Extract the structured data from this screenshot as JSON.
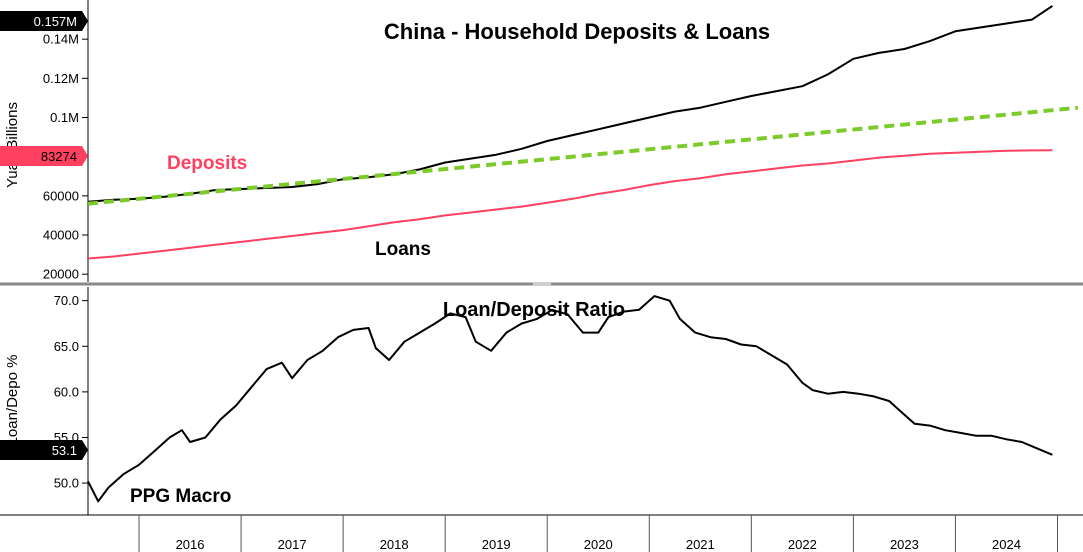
{
  "colors": {
    "deposits": "#ff4060",
    "loans": "#000000",
    "trend": "#7ccb2a",
    "ratio": "#000000",
    "divider": "#9a9a9a"
  },
  "chart_data": [
    {
      "type": "line",
      "title": "China - Household Deposits & Loans",
      "ylabel": "Yuan Billions",
      "ylim": [
        16000,
        160000
      ],
      "yticks": [
        {
          "value": 20000,
          "label": "20000"
        },
        {
          "value": 40000,
          "label": "40000"
        },
        {
          "value": 60000,
          "label": "60000"
        },
        {
          "value": 100000,
          "label": "0.1M"
        },
        {
          "value": 120000,
          "label": "0.12M"
        },
        {
          "value": 140000,
          "label": "0.14M"
        }
      ],
      "annotations": {
        "deposits": "Deposits",
        "loans": "Loans"
      },
      "last_value_tags": [
        {
          "series": "Loans",
          "label": "0.157M",
          "value": 157000
        },
        {
          "series": "Deposits",
          "label": "83274",
          "value": 83274
        }
      ],
      "series": [
        {
          "name": "Loans",
          "points": [
            [
              2015.5,
              57000
            ],
            [
              2015.75,
              58000
            ],
            [
              2016.0,
              58500
            ],
            [
              2016.25,
              59500
            ],
            [
              2016.5,
              61000
            ],
            [
              2016.75,
              63000
            ],
            [
              2017.0,
              63500
            ],
            [
              2017.25,
              64000
            ],
            [
              2017.5,
              64500
            ],
            [
              2017.75,
              66000
            ],
            [
              2018.0,
              68500
            ],
            [
              2018.25,
              69500
            ],
            [
              2018.5,
              71000
            ],
            [
              2018.75,
              73500
            ],
            [
              2019.0,
              77000
            ],
            [
              2019.25,
              79000
            ],
            [
              2019.5,
              81000
            ],
            [
              2019.75,
              84000
            ],
            [
              2020.0,
              88000
            ],
            [
              2020.25,
              91000
            ],
            [
              2020.5,
              94000
            ],
            [
              2020.75,
              97000
            ],
            [
              2021.0,
              100000
            ],
            [
              2021.25,
              103000
            ],
            [
              2021.5,
              105000
            ],
            [
              2021.75,
              108000
            ],
            [
              2022.0,
              111000
            ],
            [
              2022.25,
              113500
            ],
            [
              2022.5,
              116000
            ],
            [
              2022.75,
              122000
            ],
            [
              2023.0,
              130000
            ],
            [
              2023.25,
              133000
            ],
            [
              2023.5,
              135000
            ],
            [
              2023.75,
              139000
            ],
            [
              2024.0,
              144000
            ],
            [
              2024.25,
              146000
            ],
            [
              2024.5,
              148000
            ],
            [
              2024.75,
              150000
            ],
            [
              2024.95,
              157000
            ]
          ]
        },
        {
          "name": "Deposits",
          "points": [
            [
              2015.5,
              28000
            ],
            [
              2015.75,
              29000
            ],
            [
              2016.0,
              30500
            ],
            [
              2016.25,
              32000
            ],
            [
              2016.5,
              33500
            ],
            [
              2016.75,
              35000
            ],
            [
              2017.0,
              36500
            ],
            [
              2017.25,
              38000
            ],
            [
              2017.5,
              39500
            ],
            [
              2017.75,
              41000
            ],
            [
              2018.0,
              42500
            ],
            [
              2018.25,
              44500
            ],
            [
              2018.5,
              46500
            ],
            [
              2018.75,
              48000
            ],
            [
              2019.0,
              50000
            ],
            [
              2019.25,
              51500
            ],
            [
              2019.5,
              53000
            ],
            [
              2019.75,
              54500
            ],
            [
              2020.0,
              56500
            ],
            [
              2020.25,
              58500
            ],
            [
              2020.5,
              61000
            ],
            [
              2020.75,
              63000
            ],
            [
              2021.0,
              65500
            ],
            [
              2021.25,
              67500
            ],
            [
              2021.5,
              69000
            ],
            [
              2021.75,
              71000
            ],
            [
              2022.0,
              72500
            ],
            [
              2022.25,
              74000
            ],
            [
              2022.5,
              75500
            ],
            [
              2022.75,
              76500
            ],
            [
              2023.0,
              78000
            ],
            [
              2023.25,
              79500
            ],
            [
              2023.5,
              80500
            ],
            [
              2023.75,
              81500
            ],
            [
              2024.0,
              82000
            ],
            [
              2024.25,
              82500
            ],
            [
              2024.5,
              83000
            ],
            [
              2024.75,
              83200
            ],
            [
              2024.95,
              83274
            ]
          ]
        },
        {
          "name": "Trend",
          "dashed": true,
          "points": [
            [
              2015.5,
              56000
            ],
            [
              2025.2,
              105000
            ]
          ]
        }
      ]
    },
    {
      "type": "line",
      "title": "Loan/Deposit Ratio",
      "ylabel": "Loan/Depo %",
      "ylim": [
        46.5,
        71.5
      ],
      "yticks": [
        {
          "value": 50,
          "label": "50.0"
        },
        {
          "value": 55,
          "label": "55.0"
        },
        {
          "value": 60,
          "label": "60.0"
        },
        {
          "value": 65,
          "label": "65.0"
        },
        {
          "value": 70,
          "label": "70.0"
        }
      ],
      "annotations": {
        "source": "PPG Macro"
      },
      "last_value_tags": [
        {
          "series": "Loan/Deposit Ratio",
          "label": "53.1",
          "value": 53.1
        }
      ],
      "series": [
        {
          "name": "Loan/Deposit Ratio",
          "points": [
            [
              2015.5,
              50.2
            ],
            [
              2015.6,
              48.0
            ],
            [
              2015.7,
              49.5
            ],
            [
              2015.85,
              51.0
            ],
            [
              2016.0,
              52.0
            ],
            [
              2016.15,
              53.5
            ],
            [
              2016.3,
              55.0
            ],
            [
              2016.42,
              55.8
            ],
            [
              2016.5,
              54.5
            ],
            [
              2016.65,
              55.0
            ],
            [
              2016.8,
              57.0
            ],
            [
              2016.95,
              58.5
            ],
            [
              2017.1,
              60.5
            ],
            [
              2017.25,
              62.5
            ],
            [
              2017.4,
              63.2
            ],
            [
              2017.5,
              61.5
            ],
            [
              2017.65,
              63.5
            ],
            [
              2017.8,
              64.5
            ],
            [
              2017.95,
              66.0
            ],
            [
              2018.1,
              66.8
            ],
            [
              2018.25,
              67.0
            ],
            [
              2018.32,
              64.8
            ],
            [
              2018.45,
              63.5
            ],
            [
              2018.6,
              65.5
            ],
            [
              2018.75,
              66.5
            ],
            [
              2018.9,
              67.5
            ],
            [
              2019.05,
              68.6
            ],
            [
              2019.2,
              68.2
            ],
            [
              2019.3,
              65.5
            ],
            [
              2019.45,
              64.5
            ],
            [
              2019.6,
              66.5
            ],
            [
              2019.75,
              67.5
            ],
            [
              2019.9,
              68.0
            ],
            [
              2020.05,
              69.0
            ],
            [
              2020.2,
              68.5
            ],
            [
              2020.35,
              66.5
            ],
            [
              2020.5,
              66.5
            ],
            [
              2020.6,
              68.2
            ],
            [
              2020.75,
              68.8
            ],
            [
              2020.9,
              69.0
            ],
            [
              2021.05,
              70.5
            ],
            [
              2021.2,
              70.0
            ],
            [
              2021.3,
              68.0
            ],
            [
              2021.45,
              66.5
            ],
            [
              2021.6,
              66.0
            ],
            [
              2021.75,
              65.8
            ],
            [
              2021.9,
              65.2
            ],
            [
              2022.05,
              65.0
            ],
            [
              2022.2,
              64.0
            ],
            [
              2022.35,
              63.0
            ],
            [
              2022.5,
              61.0
            ],
            [
              2022.6,
              60.2
            ],
            [
              2022.75,
              59.8
            ],
            [
              2022.9,
              60.0
            ],
            [
              2023.05,
              59.8
            ],
            [
              2023.2,
              59.5
            ],
            [
              2023.35,
              59.0
            ],
            [
              2023.5,
              57.5
            ],
            [
              2023.6,
              56.5
            ],
            [
              2023.75,
              56.3
            ],
            [
              2023.9,
              55.8
            ],
            [
              2024.05,
              55.5
            ],
            [
              2024.2,
              55.2
            ],
            [
              2024.35,
              55.2
            ],
            [
              2024.5,
              54.8
            ],
            [
              2024.65,
              54.5
            ],
            [
              2024.8,
              53.8
            ],
            [
              2024.95,
              53.1
            ]
          ]
        }
      ]
    }
  ],
  "xaxis": {
    "range": [
      2015.5,
      2025.25
    ],
    "labels": [
      {
        "value": 2016,
        "label": "2016"
      },
      {
        "value": 2017,
        "label": "2017"
      },
      {
        "value": 2018,
        "label": "2018"
      },
      {
        "value": 2019,
        "label": "2019"
      },
      {
        "value": 2020,
        "label": "2020"
      },
      {
        "value": 2021,
        "label": "2021"
      },
      {
        "value": 2022,
        "label": "2022"
      },
      {
        "value": 2023,
        "label": "2023"
      },
      {
        "value": 2024,
        "label": "2024"
      }
    ]
  }
}
